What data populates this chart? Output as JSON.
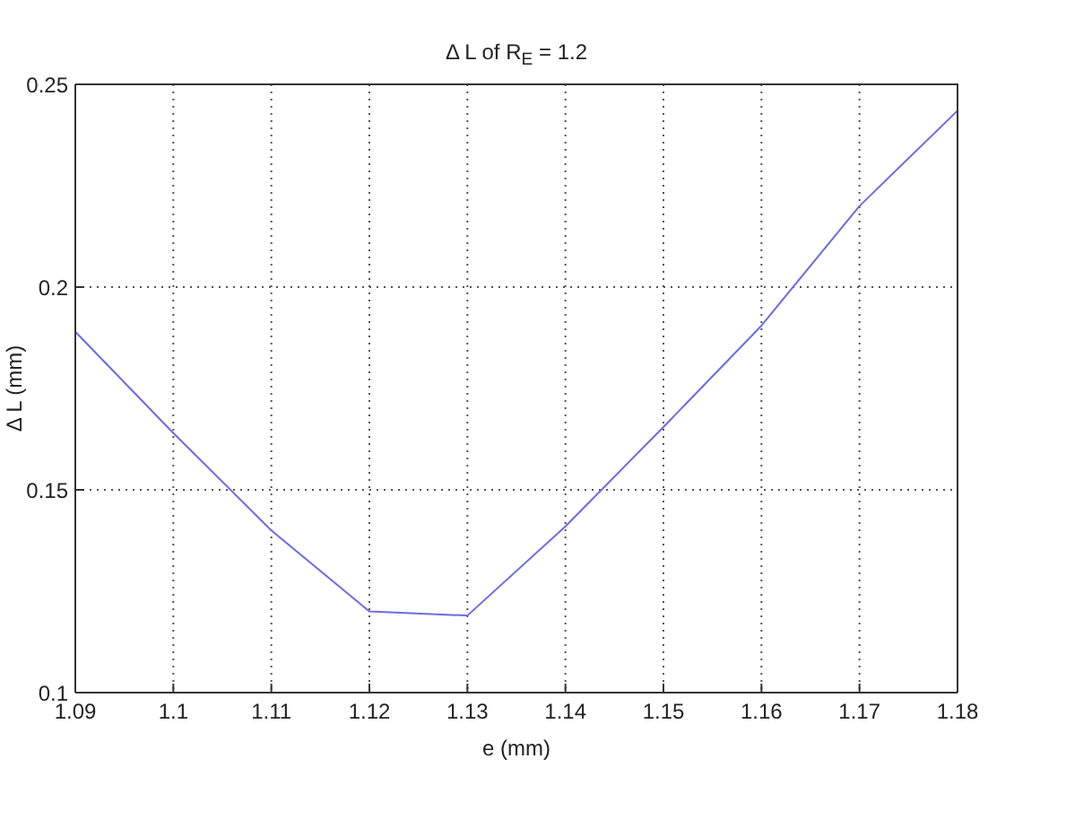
{
  "chart_data": {
    "type": "line",
    "title": "Δ L of R$_{E}$ = 1.2",
    "xlabel": "e (mm)",
    "ylabel": "Δ L (mm)",
    "x": [
      1.09,
      1.1,
      1.11,
      1.12,
      1.13,
      1.14,
      1.15,
      1.16,
      1.17,
      1.18
    ],
    "series": [
      {
        "color": "#6b6be6",
        "values": [
          0.189,
          0.164,
          0.14,
          0.12,
          0.119,
          0.141,
          0.1655,
          0.1905,
          0.22,
          0.2435
        ]
      }
    ],
    "xlim": [
      1.09,
      1.18
    ],
    "ylim": [
      0.1,
      0.25
    ],
    "xticks": [
      1.09,
      1.1,
      1.11,
      1.12,
      1.13,
      1.14,
      1.15,
      1.16,
      1.17,
      1.18
    ],
    "yticks": [
      0.1,
      0.15,
      0.2,
      0.25
    ],
    "grid": true,
    "marker": "none",
    "line_style": "solid"
  }
}
